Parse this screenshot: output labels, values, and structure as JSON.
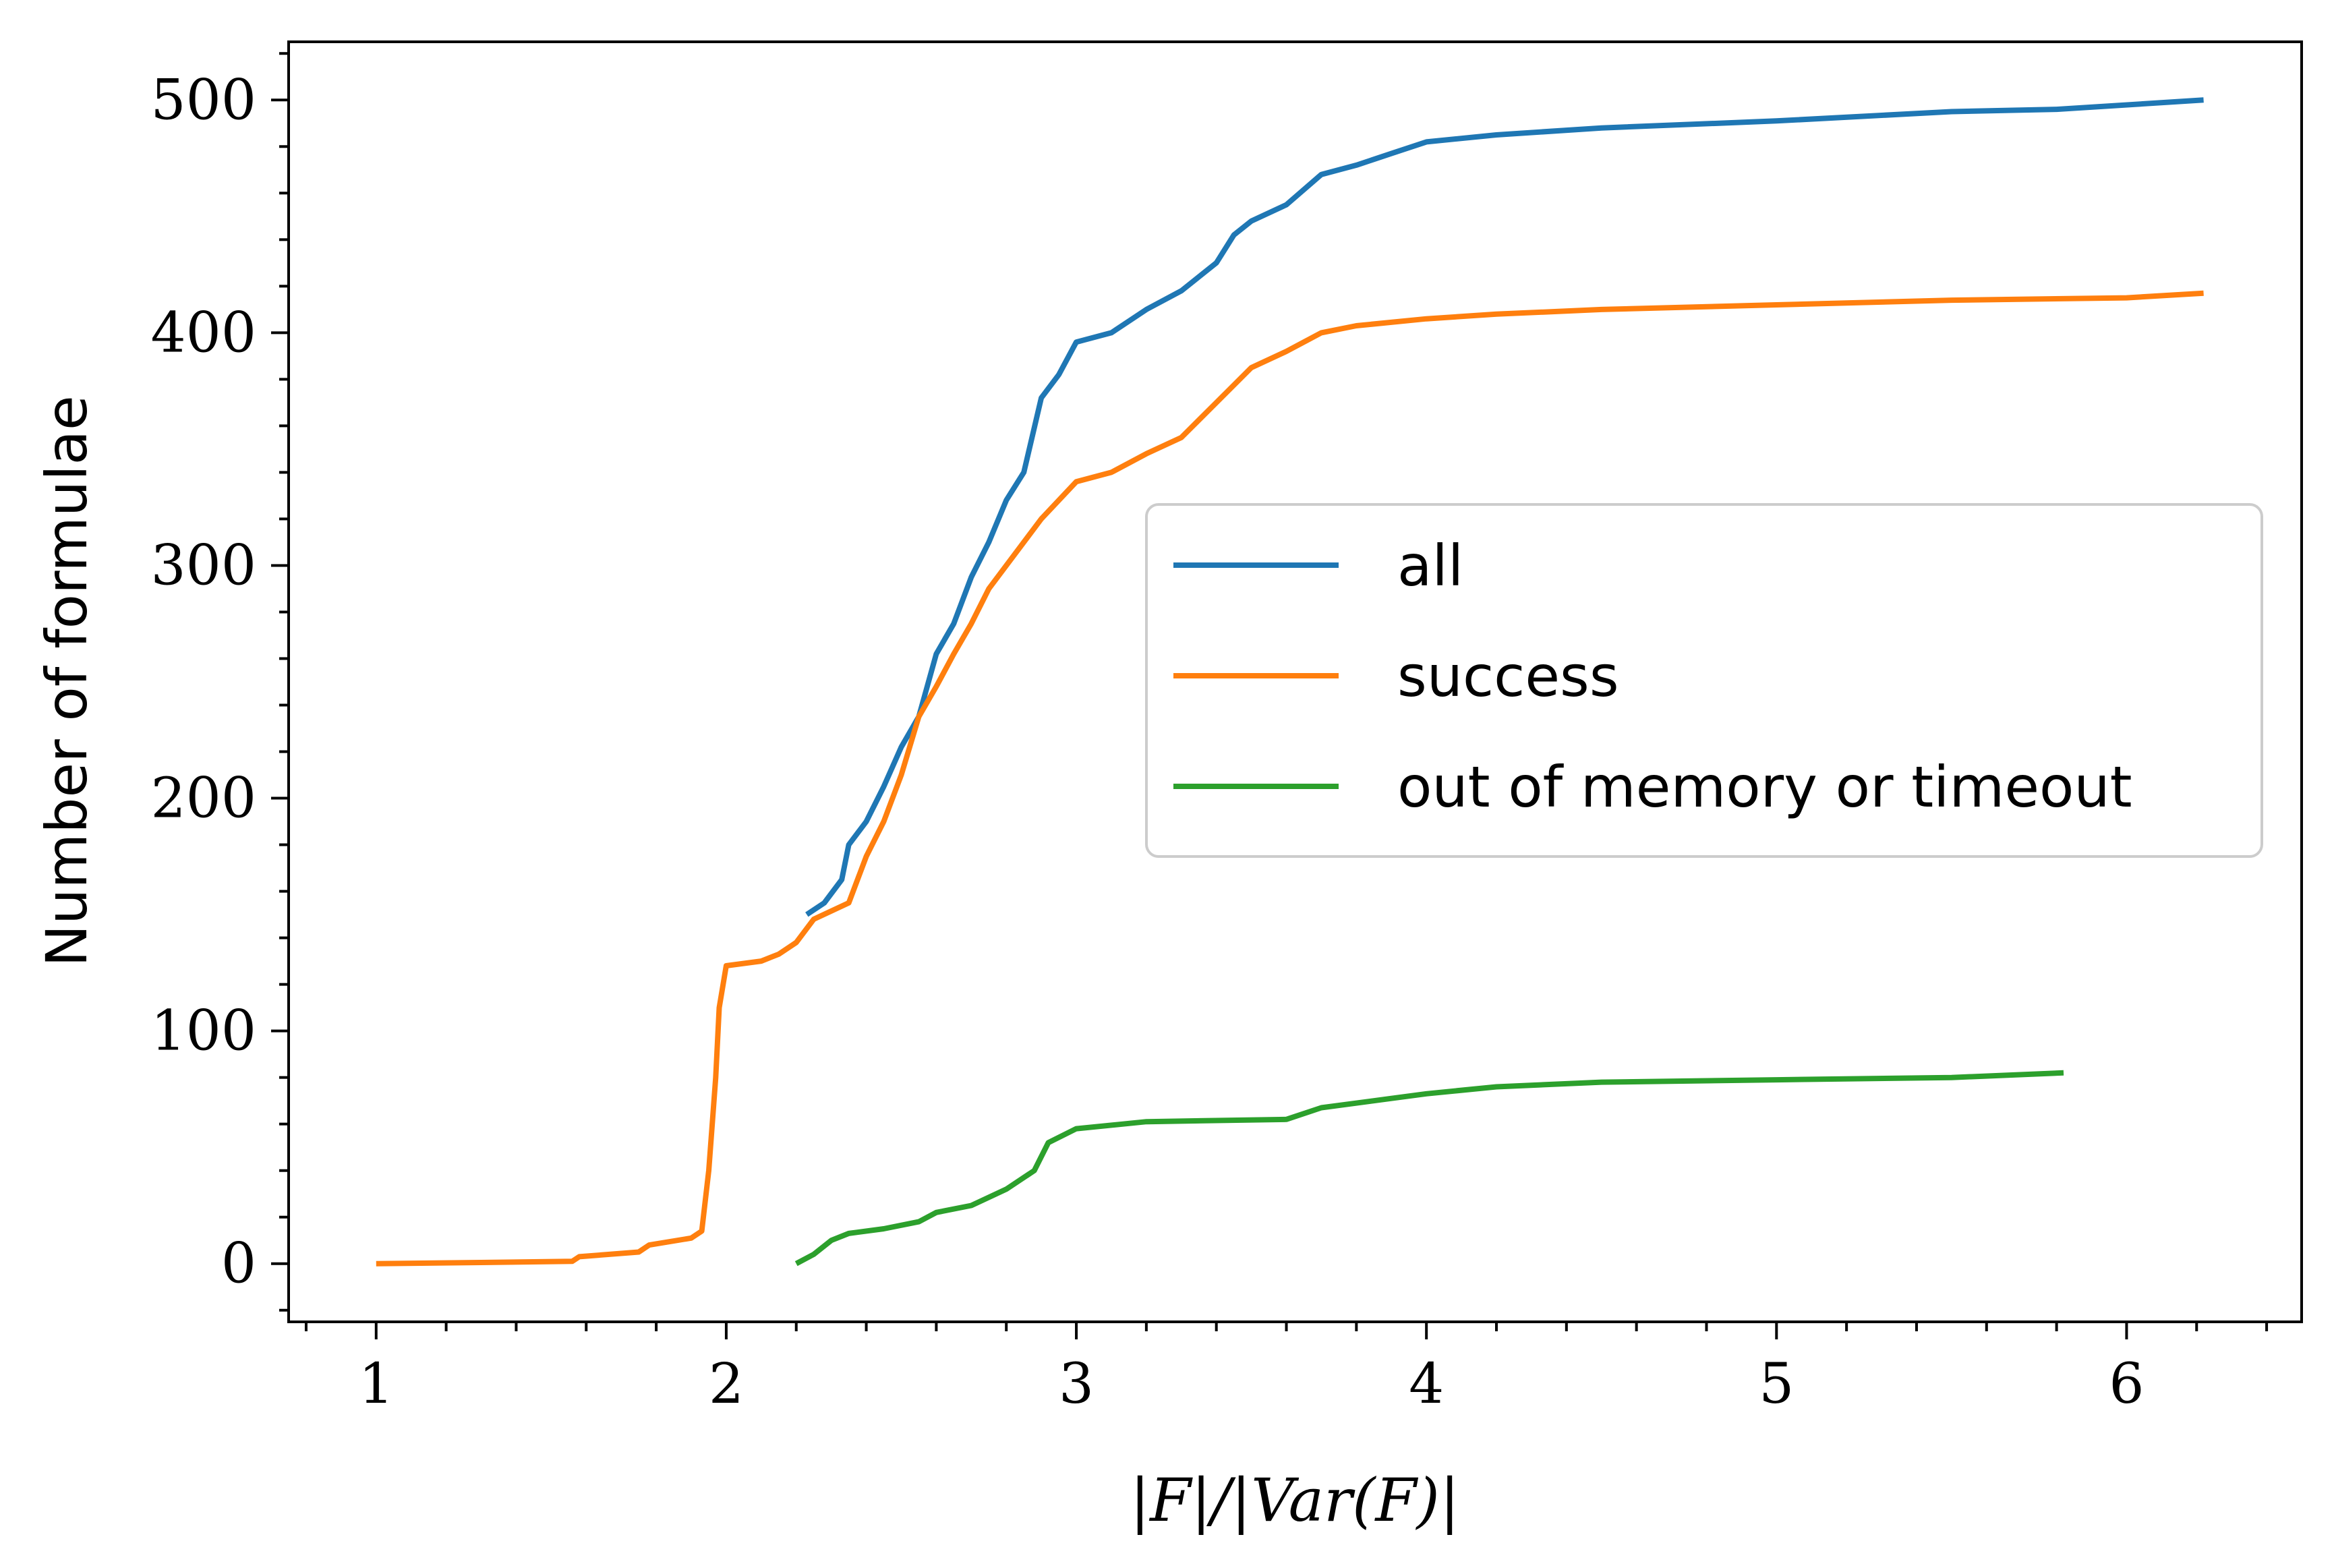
{
  "chart_data": {
    "type": "line",
    "title": "",
    "xlabel": "|F|/|Var(F)|",
    "ylabel": "Number of formulae",
    "xlim": [
      0.75,
      6.5
    ],
    "ylim": [
      -25,
      525
    ],
    "xticks": [
      1,
      2,
      3,
      4,
      5,
      6
    ],
    "yticks": [
      0,
      100,
      200,
      300,
      400,
      500
    ],
    "xtick_labels": [
      "1",
      "2",
      "3",
      "4",
      "5",
      "6"
    ],
    "ytick_labels": [
      "0",
      "100",
      "200",
      "300",
      "400",
      "500"
    ],
    "grid": false,
    "legend": {
      "placement": "center-right"
    },
    "series": [
      {
        "name": "all",
        "color": "#1f77b4",
        "points": [
          [
            2.23,
            150
          ],
          [
            2.28,
            155
          ],
          [
            2.33,
            165
          ],
          [
            2.35,
            180
          ],
          [
            2.4,
            190
          ],
          [
            2.45,
            205
          ],
          [
            2.5,
            222
          ],
          [
            2.55,
            235
          ],
          [
            2.6,
            262
          ],
          [
            2.65,
            275
          ],
          [
            2.7,
            295
          ],
          [
            2.75,
            310
          ],
          [
            2.8,
            328
          ],
          [
            2.85,
            340
          ],
          [
            2.9,
            372
          ],
          [
            2.95,
            382
          ],
          [
            3.0,
            396
          ],
          [
            3.1,
            400
          ],
          [
            3.2,
            410
          ],
          [
            3.3,
            418
          ],
          [
            3.4,
            430
          ],
          [
            3.45,
            442
          ],
          [
            3.5,
            448
          ],
          [
            3.6,
            455
          ],
          [
            3.7,
            468
          ],
          [
            3.8,
            472
          ],
          [
            3.9,
            477
          ],
          [
            4.0,
            482
          ],
          [
            4.2,
            485
          ],
          [
            4.5,
            488
          ],
          [
            5.0,
            491
          ],
          [
            5.5,
            495
          ],
          [
            5.8,
            496
          ],
          [
            6.22,
            500
          ]
        ]
      },
      {
        "name": "success",
        "color": "#ff7f0e",
        "points": [
          [
            1.0,
            0
          ],
          [
            1.3,
            0.5
          ],
          [
            1.56,
            1
          ],
          [
            1.58,
            3
          ],
          [
            1.75,
            5
          ],
          [
            1.78,
            8
          ],
          [
            1.9,
            11
          ],
          [
            1.93,
            14
          ],
          [
            1.95,
            40
          ],
          [
            1.97,
            80
          ],
          [
            1.98,
            110
          ],
          [
            2.0,
            128
          ],
          [
            2.1,
            130
          ],
          [
            2.15,
            133
          ],
          [
            2.2,
            138
          ],
          [
            2.25,
            148
          ],
          [
            2.35,
            155
          ],
          [
            2.4,
            175
          ],
          [
            2.45,
            190
          ],
          [
            2.5,
            210
          ],
          [
            2.55,
            235
          ],
          [
            2.6,
            248
          ],
          [
            2.65,
            262
          ],
          [
            2.7,
            275
          ],
          [
            2.75,
            290
          ],
          [
            2.8,
            300
          ],
          [
            2.9,
            320
          ],
          [
            3.0,
            336
          ],
          [
            3.1,
            340
          ],
          [
            3.2,
            348
          ],
          [
            3.3,
            355
          ],
          [
            3.4,
            370
          ],
          [
            3.5,
            385
          ],
          [
            3.6,
            392
          ],
          [
            3.7,
            400
          ],
          [
            3.8,
            403
          ],
          [
            4.0,
            406
          ],
          [
            4.2,
            408
          ],
          [
            4.5,
            410
          ],
          [
            5.0,
            412
          ],
          [
            5.5,
            414
          ],
          [
            6.0,
            415
          ],
          [
            6.22,
            417
          ]
        ]
      },
      {
        "name": "out of memory or timeout",
        "color": "#2ca02c",
        "points": [
          [
            2.2,
            0
          ],
          [
            2.25,
            4
          ],
          [
            2.3,
            10
          ],
          [
            2.35,
            13
          ],
          [
            2.45,
            15
          ],
          [
            2.55,
            18
          ],
          [
            2.6,
            22
          ],
          [
            2.7,
            25
          ],
          [
            2.8,
            32
          ],
          [
            2.88,
            40
          ],
          [
            2.92,
            52
          ],
          [
            3.0,
            58
          ],
          [
            3.2,
            61
          ],
          [
            3.6,
            62
          ],
          [
            3.7,
            67
          ],
          [
            3.9,
            71
          ],
          [
            4.0,
            73
          ],
          [
            4.2,
            76
          ],
          [
            4.5,
            78
          ],
          [
            5.0,
            79
          ],
          [
            5.5,
            80
          ],
          [
            5.82,
            82
          ]
        ]
      }
    ]
  }
}
